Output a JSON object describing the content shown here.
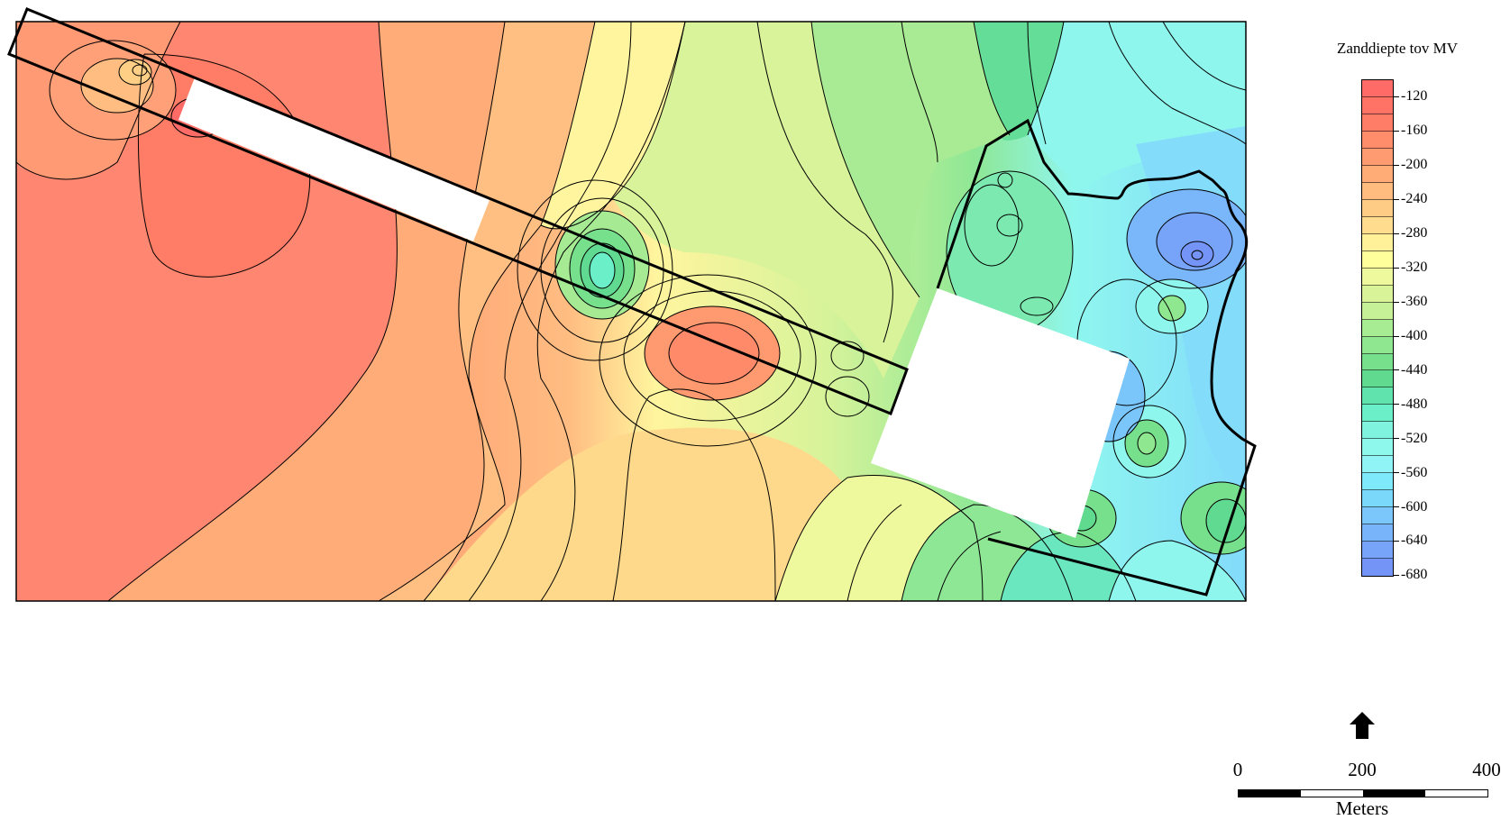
{
  "legend": {
    "title": "Zanddiepte tov MV",
    "labels": [
      "-120",
      "-160",
      "-200",
      "-240",
      "-280",
      "-320",
      "-360",
      "-400",
      "-440",
      "-480",
      "-520",
      "-560",
      "-600",
      "-640",
      "-680"
    ],
    "class_colors": [
      "#ff6b66",
      "#ff7266",
      "#ff7d66",
      "#ff8c6a",
      "#ff9b70",
      "#ffac76",
      "#ffbc7e",
      "#ffcc86",
      "#ffdc8e",
      "#fff09a",
      "#ffff9c",
      "#eef89c",
      "#d8f398",
      "#c6f197",
      "#a7eb93",
      "#8fe78f",
      "#77e08c",
      "#5fda8e",
      "#60e3ad",
      "#6aefc8",
      "#7ff3dd",
      "#8ff8ec",
      "#90f3f5",
      "#7ee9fb",
      "#7ad8fb",
      "#7bc6fb",
      "#78b4fa",
      "#77a4f9",
      "#7494f7"
    ]
  },
  "map": {
    "colors": {
      "deep_red": "#ff7a66",
      "red_orange": "#ff8f70",
      "orange": "#ffa678",
      "light_orange": "#ffbd82",
      "yellow": "#fff59e",
      "yellow_green": "#d6f39a",
      "green": "#8ee795",
      "teal": "#6fe8c2",
      "cyan": "#8ff6ee",
      "light_blue": "#82dbfb",
      "blue": "#78b1fa",
      "dark_blue": "#7494f7",
      "outline": "#000000",
      "mask": "#ffffff"
    }
  },
  "scale": {
    "ticks": [
      "0",
      "200",
      "400"
    ],
    "unit": "Meters"
  },
  "north_icon": "north-arrow-icon"
}
